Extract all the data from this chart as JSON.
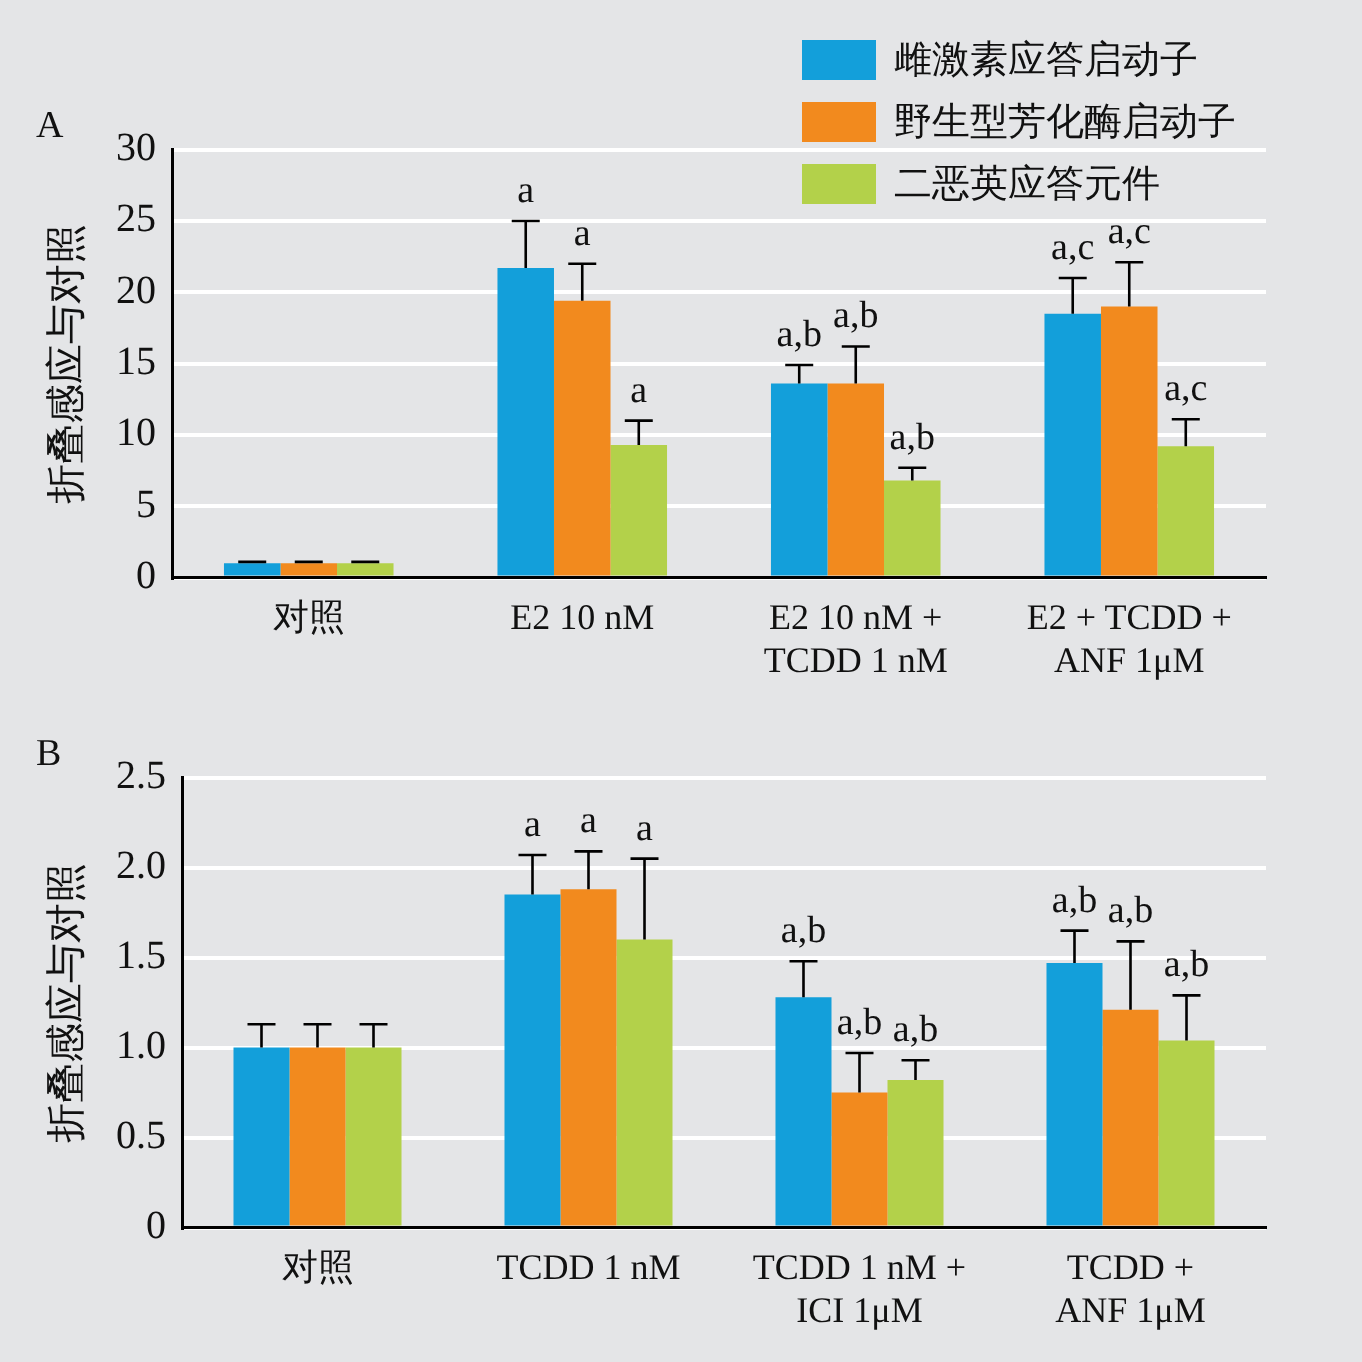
{
  "chart_data": [
    {
      "type": "bar",
      "title": "A",
      "ylabel": "折叠感应与对照",
      "categories": [
        "对照",
        "E2 10 nM",
        "E2 10 nM +\nTCDD 1 nM",
        "E2 + TCDD +\nANF 1μM"
      ],
      "series": [
        {
          "name": "雌激素应答启动子",
          "color": "#139fda",
          "values": [
            1,
            21.7,
            13.6,
            18.5
          ],
          "errors": [
            [
              1,
              1.1
            ],
            [
              21.7,
              25
            ],
            [
              13.6,
              14.9
            ],
            [
              18.5,
              21
            ]
          ],
          "value_labels": [
            null,
            "a",
            "a,b",
            "a,c"
          ]
        },
        {
          "name": "野生型芳化酶启动子",
          "color": "#f28a1e",
          "values": [
            1,
            19.4,
            13.6,
            19
          ],
          "errors": [
            [
              1,
              1.1
            ],
            [
              19.4,
              22
            ],
            [
              13.6,
              16.2
            ],
            [
              19,
              22.1
            ]
          ],
          "value_labels": [
            null,
            "a",
            "a,b",
            "a,c"
          ]
        },
        {
          "name": "二恶英应答元件",
          "color": "#b3d14a",
          "values": [
            1,
            9.3,
            6.8,
            9.2
          ],
          "errors": [
            [
              1,
              1.1
            ],
            [
              9.3,
              11
            ],
            [
              6.8,
              7.7
            ],
            [
              9.2,
              11.1
            ]
          ],
          "value_labels": [
            null,
            "a",
            "a,b",
            "a,c"
          ]
        }
      ],
      "ylim": [
        0,
        30
      ],
      "yticks": [
        0,
        5,
        10,
        15,
        20,
        25,
        30
      ],
      "grid": "y",
      "legend": "top right"
    },
    {
      "type": "bar",
      "title": "B",
      "ylabel": "折叠感应与对照",
      "categories": [
        "对照",
        "TCDD 1 nM",
        "TCDD 1 nM +\nICI 1μM",
        "TCDD +\nANF 1μM"
      ],
      "series": [
        {
          "color": "#139fda",
          "values": [
            1,
            1.85,
            1.28,
            1.47
          ],
          "errors": [
            [
              1,
              1.13
            ],
            [
              1.85,
              2.07
            ],
            [
              1.28,
              1.48
            ],
            [
              1.47,
              1.65
            ]
          ],
          "value_labels": [
            null,
            "a",
            "a,b",
            "a,b"
          ]
        },
        {
          "color": "#f28a1e",
          "values": [
            1,
            1.88,
            0.75,
            1.21
          ],
          "errors": [
            [
              1,
              1.13
            ],
            [
              1.88,
              2.09
            ],
            [
              0.75,
              0.97
            ],
            [
              1.21,
              1.59
            ]
          ],
          "value_labels": [
            null,
            "a",
            "a,b",
            "a,b"
          ]
        },
        {
          "color": "#b3d14a",
          "values": [
            1,
            1.6,
            0.82,
            1.04
          ],
          "errors": [
            [
              1,
              1.13
            ],
            [
              1.6,
              2.05
            ],
            [
              0.82,
              0.93
            ],
            [
              1.04,
              1.29
            ]
          ],
          "value_labels": [
            null,
            "a",
            "a,b",
            "a,b"
          ]
        }
      ],
      "ylim": [
        0,
        2.5
      ],
      "yticks": [
        {
          "value": 0,
          "label": "0"
        },
        {
          "value": 0.5,
          "label": "0.5"
        },
        {
          "value": 1,
          "label": "1.0"
        },
        {
          "value": 1.5,
          "label": "1.5"
        },
        {
          "value": 2,
          "label": "2.0"
        },
        {
          "value": 2.5,
          "label": "2.5"
        }
      ],
      "grid": "y"
    }
  ]
}
